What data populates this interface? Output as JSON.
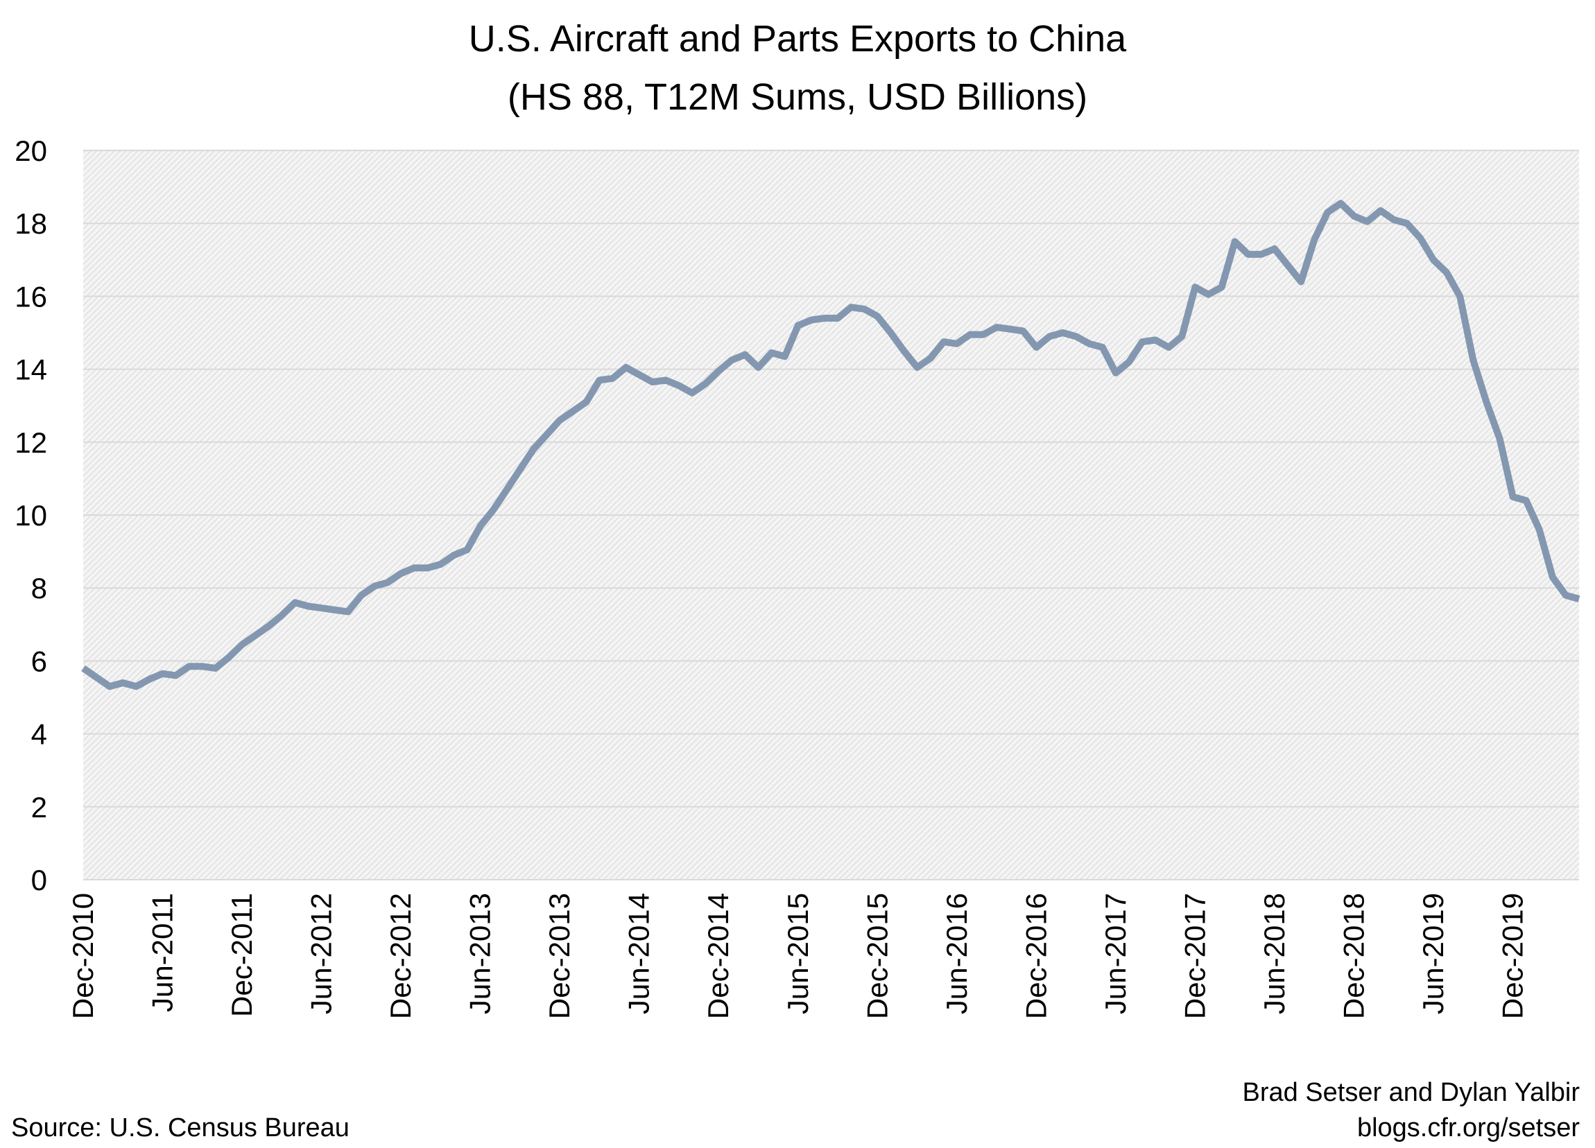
{
  "chart_data": {
    "type": "line",
    "title": "U.S. Aircraft and Parts Exports to China",
    "subtitle": "(HS 88, T12M Sums, USD Billions)",
    "xlabel": "",
    "ylabel": "",
    "ylim": [
      0,
      20
    ],
    "yticks": [
      0,
      2,
      4,
      6,
      8,
      10,
      12,
      14,
      16,
      18,
      20
    ],
    "grid": true,
    "legend": "none",
    "line_color": "#8497b0",
    "x_tick_labels": [
      "Dec-2010",
      "Jun-2011",
      "Dec-2011",
      "Jun-2012",
      "Dec-2012",
      "Jun-2013",
      "Dec-2013",
      "Jun-2014",
      "Dec-2014",
      "Jun-2015",
      "Dec-2015",
      "Jun-2016",
      "Dec-2016",
      "Jun-2017",
      "Dec-2017",
      "Jun-2018",
      "Dec-2018",
      "Jun-2019",
      "Dec-2019"
    ],
    "x_start": "Dec-2010",
    "x_frequency": "monthly",
    "values": [
      5.8,
      5.55,
      5.3,
      5.4,
      5.3,
      5.5,
      5.65,
      5.6,
      5.85,
      5.85,
      5.8,
      6.1,
      6.45,
      6.7,
      6.95,
      7.25,
      7.6,
      7.5,
      7.45,
      7.4,
      7.35,
      7.8,
      8.05,
      8.15,
      8.4,
      8.55,
      8.55,
      8.65,
      8.9,
      9.05,
      9.7,
      10.15,
      10.7,
      11.25,
      11.8,
      12.2,
      12.6,
      12.85,
      13.1,
      13.7,
      13.75,
      14.05,
      13.85,
      13.65,
      13.7,
      13.55,
      13.35,
      13.6,
      13.95,
      14.25,
      14.4,
      14.05,
      14.45,
      14.35,
      15.2,
      15.35,
      15.4,
      15.4,
      15.7,
      15.65,
      15.45,
      15.0,
      14.5,
      14.05,
      14.3,
      14.75,
      14.7,
      14.95,
      14.95,
      15.15,
      15.1,
      15.05,
      14.6,
      14.9,
      15.0,
      14.9,
      14.7,
      14.6,
      13.9,
      14.2,
      14.75,
      14.8,
      14.6,
      14.9,
      16.25,
      16.05,
      16.25,
      17.5,
      17.15,
      17.15,
      17.3,
      16.85,
      16.4,
      17.55,
      18.3,
      18.55,
      18.2,
      18.05,
      18.35,
      18.1,
      18.0,
      17.6,
      17.0,
      16.65,
      16.0,
      14.25,
      13.1,
      12.1,
      10.5,
      10.4,
      9.6,
      8.3,
      7.8,
      7.7
    ]
  },
  "footer": {
    "source": "Source: U.S. Census Bureau",
    "authors": "Brad Setser and Dylan Yalbir",
    "website": "blogs.cfr.org/setser"
  }
}
